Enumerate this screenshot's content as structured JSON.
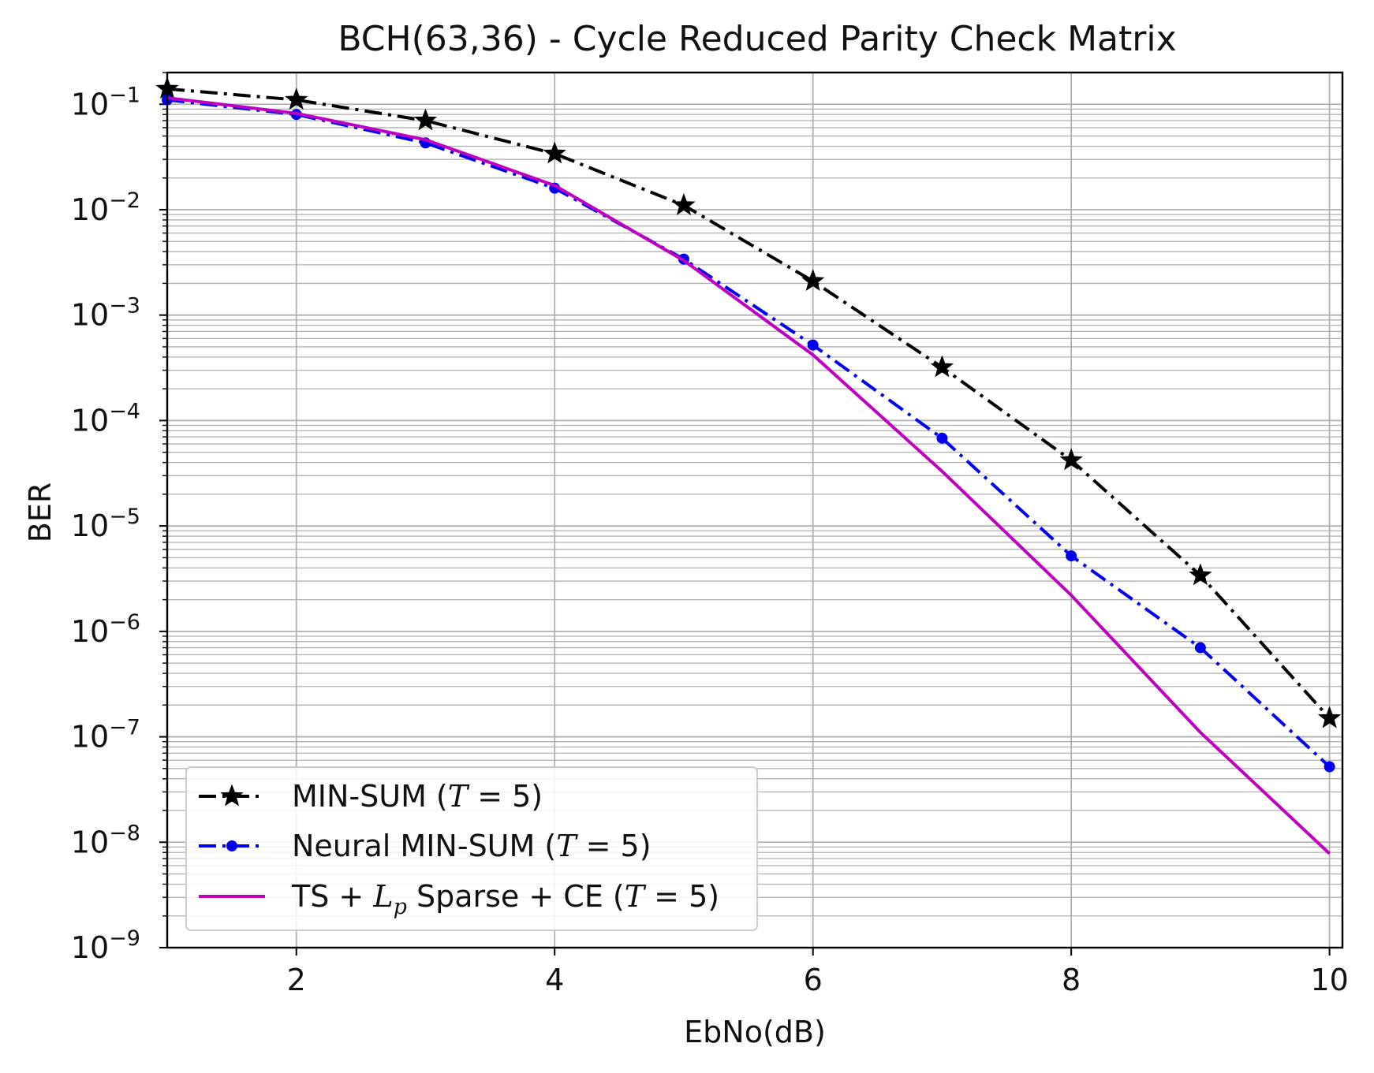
{
  "chart_data": {
    "type": "line",
    "title": "BCH(63,36) - Cycle Reduced Parity Check Matrix",
    "xlabel": "EbNo(dB)",
    "ylabel": "BER",
    "xlim": [
      1,
      10.1
    ],
    "ylim": [
      1e-09,
      0.2
    ],
    "yscale": "log",
    "grid": true,
    "legend_position": "lower-left",
    "x_ticks": [
      2,
      4,
      6,
      8,
      10
    ],
    "x_tick_labels": [
      "2",
      "4",
      "6",
      "8",
      "10"
    ],
    "y_tick_labels": [
      {
        "base": "10",
        "exp": "−1"
      },
      {
        "base": "10",
        "exp": "−2"
      },
      {
        "base": "10",
        "exp": "−3"
      },
      {
        "base": "10",
        "exp": "−4"
      },
      {
        "base": "10",
        "exp": "−5"
      },
      {
        "base": "10",
        "exp": "−6"
      },
      {
        "base": "10",
        "exp": "−7"
      },
      {
        "base": "10",
        "exp": "−8"
      },
      {
        "base": "10",
        "exp": "−9"
      }
    ],
    "series": [
      {
        "name_parts": {
          "text": "MIN-SUM (",
          "var": "T",
          "rest": " = 5)"
        },
        "color": "#000000",
        "marker": "star",
        "linestyle": "dashdot",
        "x": [
          1,
          2,
          3,
          4,
          5,
          6,
          7,
          8,
          9,
          10
        ],
        "y": [
          0.14,
          0.11,
          0.07,
          0.034,
          0.011,
          0.0021,
          0.00032,
          4.2e-05,
          3.4e-06,
          1.5e-07
        ]
      },
      {
        "name_parts": {
          "text": "Neural MIN-SUM (",
          "var": "T",
          "rest": " = 5)"
        },
        "color": "#0000ee",
        "marker": "circle",
        "linestyle": "dashdot",
        "x": [
          1,
          2,
          3,
          4,
          5,
          6,
          7,
          8,
          9,
          10
        ],
        "y": [
          0.11,
          0.08,
          0.043,
          0.016,
          0.0034,
          0.00052,
          6.8e-05,
          5.2e-06,
          7e-07,
          5.2e-08
        ]
      },
      {
        "name_parts": {
          "text": "TS + ",
          "var": "L",
          "sub": "p",
          "rest2": " Sparse + CE (",
          "var2": "T",
          "rest": " = 5)"
        },
        "color": "#c000c0",
        "marker": "none",
        "linestyle": "solid",
        "x": [
          1,
          2,
          3,
          4,
          5,
          6,
          7,
          8,
          9,
          10
        ],
        "y": [
          0.115,
          0.082,
          0.046,
          0.017,
          0.0033,
          0.00042,
          3.3e-05,
          2.2e-06,
          1.1e-07,
          7.8e-09
        ]
      }
    ]
  }
}
